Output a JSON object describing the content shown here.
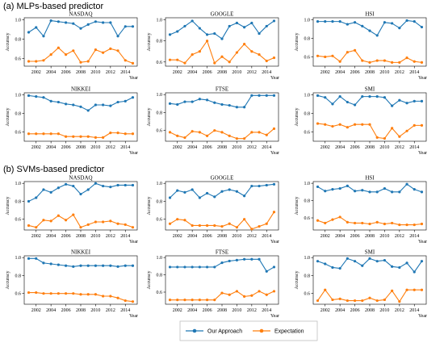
{
  "sections": [
    {
      "key": "mlp",
      "title": "(a) MLPs-based predictor"
    },
    {
      "key": "svm",
      "title": "(b) SVMs-based predictor"
    }
  ],
  "legend": {
    "items": [
      {
        "label": "Our Approach",
        "color": "#1f77b4"
      },
      {
        "label": "Expectation",
        "color": "#ff7f0e"
      }
    ]
  },
  "colors": {
    "our_approach": "#1f77b4",
    "expectation": "#ff7f0e"
  },
  "chart_data": [
    {
      "type": "line",
      "section": "mlp",
      "title": "NASDAQ",
      "xlabel": "Year",
      "ylabel": "Accuracy",
      "x": [
        2001,
        2002,
        2003,
        2004,
        2005,
        2006,
        2007,
        2008,
        2009,
        2010,
        2011,
        2012,
        2013,
        2014,
        2015
      ],
      "xticks": [
        2002,
        2004,
        2006,
        2008,
        2010,
        2012,
        2014
      ],
      "yticks": [
        0.6,
        0.8,
        1.0
      ],
      "ylim": [
        0.52,
        1.02
      ],
      "series": [
        {
          "name": "Our Approach",
          "values": [
            0.87,
            0.92,
            0.83,
            0.99,
            0.98,
            0.97,
            0.96,
            0.91,
            0.95,
            0.98,
            0.97,
            0.97,
            0.83,
            0.93,
            0.93
          ]
        },
        {
          "name": "Expectation",
          "values": [
            0.57,
            0.57,
            0.58,
            0.64,
            0.71,
            0.64,
            0.68,
            0.56,
            0.57,
            0.69,
            0.66,
            0.7,
            0.68,
            0.58,
            0.55
          ]
        }
      ]
    },
    {
      "type": "line",
      "section": "mlp",
      "title": "GOOGLE",
      "xlabel": "Year",
      "ylabel": "Accuracy",
      "x": [
        2001,
        2002,
        2003,
        2004,
        2005,
        2006,
        2007,
        2008,
        2009,
        2010,
        2011,
        2012,
        2013,
        2014,
        2015
      ],
      "xticks": [
        2002,
        2004,
        2006,
        2008,
        2010,
        2012,
        2014
      ],
      "yticks": [
        0.6,
        0.8,
        1.0
      ],
      "ylim": [
        0.56,
        1.02
      ],
      "series": [
        {
          "name": "Our Approach",
          "values": [
            0.86,
            0.89,
            0.94,
            0.99,
            0.92,
            0.86,
            0.87,
            0.82,
            0.94,
            0.97,
            0.93,
            0.97,
            0.87,
            0.94,
            0.99
          ]
        },
        {
          "name": "Expectation",
          "values": [
            0.62,
            0.62,
            0.59,
            0.67,
            0.7,
            0.8,
            0.59,
            0.65,
            0.6,
            0.69,
            0.77,
            0.7,
            0.67,
            0.61,
            0.64
          ]
        }
      ]
    },
    {
      "type": "line",
      "section": "mlp",
      "title": "HSI",
      "xlabel": "Year",
      "ylabel": "Accuracy",
      "x": [
        2001,
        2002,
        2003,
        2004,
        2005,
        2006,
        2007,
        2008,
        2009,
        2010,
        2011,
        2012,
        2013,
        2014,
        2015
      ],
      "xticks": [
        2002,
        2004,
        2006,
        2008,
        2010,
        2012,
        2014
      ],
      "yticks": [
        0.6,
        0.8,
        1.0
      ],
      "ylim": [
        0.5,
        1.02
      ],
      "series": [
        {
          "name": "Our Approach",
          "values": [
            0.98,
            0.98,
            0.98,
            0.98,
            0.95,
            0.97,
            0.93,
            0.88,
            0.83,
            0.97,
            0.96,
            0.91,
            0.99,
            0.98,
            0.92
          ]
        },
        {
          "name": "Expectation",
          "values": [
            0.61,
            0.6,
            0.61,
            0.55,
            0.65,
            0.67,
            0.56,
            0.54,
            0.56,
            0.56,
            0.54,
            0.54,
            0.59,
            0.55,
            0.54
          ]
        }
      ]
    },
    {
      "type": "line",
      "section": "mlp",
      "title": "NIKKEI",
      "xlabel": "Year",
      "ylabel": "Accuracy",
      "x": [
        2001,
        2002,
        2003,
        2004,
        2005,
        2006,
        2007,
        2008,
        2009,
        2010,
        2011,
        2012,
        2013,
        2014,
        2015
      ],
      "xticks": [
        2002,
        2004,
        2006,
        2008,
        2010,
        2012,
        2014
      ],
      "yticks": [
        0.6,
        0.8,
        1.0
      ],
      "ylim": [
        0.5,
        1.02
      ],
      "series": [
        {
          "name": "Our Approach",
          "values": [
            0.99,
            0.98,
            0.97,
            0.93,
            0.92,
            0.9,
            0.89,
            0.87,
            0.83,
            0.89,
            0.89,
            0.88,
            0.92,
            0.93,
            0.97
          ]
        },
        {
          "name": "Expectation",
          "values": [
            0.58,
            0.58,
            0.58,
            0.58,
            0.58,
            0.55,
            0.55,
            0.55,
            0.55,
            0.54,
            0.54,
            0.59,
            0.59,
            0.58,
            0.58
          ]
        }
      ]
    },
    {
      "type": "line",
      "section": "mlp",
      "title": "FTSE",
      "xlabel": "Year",
      "ylabel": "Accuracy",
      "x": [
        2001,
        2002,
        2003,
        2004,
        2005,
        2006,
        2007,
        2008,
        2009,
        2010,
        2011,
        2012,
        2013,
        2014,
        2015
      ],
      "xticks": [
        2002,
        2004,
        2006,
        2008,
        2010,
        2012,
        2014
      ],
      "yticks": [
        0.6,
        0.8,
        1.0
      ],
      "ylim": [
        0.48,
        1.02
      ],
      "series": [
        {
          "name": "Our Approach",
          "values": [
            0.9,
            0.89,
            0.92,
            0.92,
            0.95,
            0.94,
            0.91,
            0.89,
            0.88,
            0.86,
            0.86,
            0.99,
            0.99,
            0.99,
            0.99
          ]
        },
        {
          "name": "Expectation",
          "values": [
            0.58,
            0.54,
            0.52,
            0.59,
            0.58,
            0.54,
            0.6,
            0.58,
            0.54,
            0.51,
            0.51,
            0.58,
            0.58,
            0.55,
            0.62
          ]
        }
      ]
    },
    {
      "type": "line",
      "section": "mlp",
      "title": "SMI",
      "xlabel": "Year",
      "ylabel": "Accuracy",
      "x": [
        2001,
        2002,
        2003,
        2004,
        2005,
        2006,
        2007,
        2008,
        2009,
        2010,
        2011,
        2012,
        2013,
        2014,
        2015
      ],
      "xticks": [
        2002,
        2004,
        2006,
        2008,
        2010,
        2012,
        2014
      ],
      "yticks": [
        0.6,
        0.8,
        1.0
      ],
      "ylim": [
        0.5,
        1.02
      ],
      "series": [
        {
          "name": "Our Approach",
          "values": [
            0.99,
            0.97,
            0.9,
            0.98,
            0.92,
            0.89,
            0.98,
            0.98,
            0.98,
            0.97,
            0.88,
            0.94,
            0.91,
            0.93,
            0.93
          ]
        },
        {
          "name": "Expectation",
          "values": [
            0.69,
            0.68,
            0.66,
            0.68,
            0.65,
            0.68,
            0.68,
            0.68,
            0.54,
            0.53,
            0.64,
            0.55,
            0.61,
            0.67,
            0.67
          ]
        }
      ]
    },
    {
      "type": "line",
      "section": "svm",
      "title": "NASDAQ",
      "xlabel": "Year",
      "ylabel": "Accuracy",
      "x": [
        2001,
        2002,
        2003,
        2004,
        2005,
        2006,
        2007,
        2008,
        2009,
        2010,
        2011,
        2012,
        2013,
        2014,
        2015
      ],
      "xticks": [
        2002,
        2004,
        2006,
        2008,
        2010,
        2012,
        2014
      ],
      "yticks": [
        0.6,
        0.8,
        1.0
      ],
      "ylim": [
        0.48,
        1.02
      ],
      "series": [
        {
          "name": "Our Approach",
          "values": [
            0.8,
            0.84,
            0.93,
            0.9,
            0.95,
            0.99,
            0.97,
            0.88,
            0.93,
            1.0,
            0.97,
            0.96,
            0.98,
            0.98,
            0.98
          ]
        },
        {
          "name": "Expectation",
          "values": [
            0.53,
            0.51,
            0.59,
            0.58,
            0.64,
            0.59,
            0.65,
            0.51,
            0.54,
            0.57,
            0.57,
            0.58,
            0.55,
            0.54,
            0.51
          ]
        }
      ]
    },
    {
      "type": "line",
      "section": "svm",
      "title": "GOOGLE",
      "xlabel": "Year",
      "ylabel": "Accuracy",
      "x": [
        2001,
        2002,
        2003,
        2004,
        2005,
        2006,
        2007,
        2008,
        2009,
        2010,
        2011,
        2012,
        2013,
        2014,
        2015
      ],
      "xticks": [
        2002,
        2004,
        2006,
        2008,
        2010,
        2012,
        2014
      ],
      "yticks": [
        0.6,
        0.8,
        1.0
      ],
      "ylim": [
        0.48,
        1.02
      ],
      "series": [
        {
          "name": "Our Approach",
          "values": [
            0.84,
            0.92,
            0.9,
            0.93,
            0.84,
            0.89,
            0.85,
            0.91,
            0.93,
            0.91,
            0.86,
            0.97,
            0.97,
            0.98,
            0.99
          ]
        },
        {
          "name": "Expectation",
          "values": [
            0.55,
            0.6,
            0.59,
            0.53,
            0.53,
            0.53,
            0.53,
            0.52,
            0.55,
            0.51,
            0.6,
            0.49,
            0.52,
            0.55,
            0.68
          ]
        }
      ]
    },
    {
      "type": "line",
      "section": "svm",
      "title": "HSI",
      "xlabel": "Year",
      "ylabel": "Accuracy",
      "x": [
        2001,
        2002,
        2003,
        2004,
        2005,
        2006,
        2007,
        2008,
        2009,
        2010,
        2011,
        2012,
        2013,
        2014,
        2015
      ],
      "xticks": [
        2002,
        2004,
        2006,
        2008,
        2010,
        2012,
        2014
      ],
      "yticks": [
        0.6,
        0.8,
        1.0
      ],
      "ylim": [
        0.46,
        1.02
      ],
      "series": [
        {
          "name": "Our Approach",
          "values": [
            0.96,
            0.91,
            0.93,
            0.94,
            0.97,
            0.91,
            0.92,
            0.9,
            0.9,
            0.94,
            0.9,
            0.9,
            0.99,
            0.93,
            0.9
          ]
        },
        {
          "name": "Expectation",
          "values": [
            0.57,
            0.54,
            0.58,
            0.61,
            0.55,
            0.54,
            0.54,
            0.53,
            0.55,
            0.53,
            0.54,
            0.52,
            0.52,
            0.52,
            0.53
          ]
        }
      ]
    },
    {
      "type": "line",
      "section": "svm",
      "title": "NIKKEI",
      "xlabel": "Year",
      "ylabel": "Accuracy",
      "x": [
        2001,
        2002,
        2003,
        2004,
        2005,
        2006,
        2007,
        2008,
        2009,
        2010,
        2011,
        2012,
        2013,
        2014,
        2015
      ],
      "xticks": [
        2002,
        2004,
        2006,
        2008,
        2010,
        2012,
        2014
      ],
      "yticks": [
        0.6,
        0.8,
        1.0
      ],
      "ylim": [
        0.48,
        1.02
      ],
      "series": [
        {
          "name": "Our Approach",
          "values": [
            0.99,
            0.99,
            0.94,
            0.93,
            0.92,
            0.91,
            0.9,
            0.91,
            0.91,
            0.91,
            0.91,
            0.91,
            0.9,
            0.91,
            0.91
          ]
        },
        {
          "name": "Expectation",
          "values": [
            0.61,
            0.61,
            0.6,
            0.6,
            0.6,
            0.6,
            0.6,
            0.59,
            0.59,
            0.59,
            0.57,
            0.57,
            0.55,
            0.52,
            0.51
          ]
        }
      ]
    },
    {
      "type": "line",
      "section": "svm",
      "title": "FTSE",
      "xlabel": "Year",
      "ylabel": "Accuracy",
      "x": [
        2001,
        2002,
        2003,
        2004,
        2005,
        2006,
        2007,
        2008,
        2009,
        2010,
        2011,
        2012,
        2013,
        2014,
        2015
      ],
      "xticks": [
        2002,
        2004,
        2006,
        2008,
        2010,
        2012,
        2014
      ],
      "yticks": [
        0.6,
        0.8,
        1.0
      ],
      "ylim": [
        0.46,
        1.02
      ],
      "series": [
        {
          "name": "Our Approach",
          "values": [
            0.89,
            0.89,
            0.89,
            0.89,
            0.89,
            0.89,
            0.89,
            0.94,
            0.96,
            0.97,
            0.98,
            0.98,
            0.98,
            0.84,
            0.89
          ]
        },
        {
          "name": "Expectation",
          "values": [
            0.51,
            0.51,
            0.51,
            0.51,
            0.51,
            0.51,
            0.51,
            0.59,
            0.57,
            0.61,
            0.55,
            0.56,
            0.61,
            0.57,
            0.61
          ]
        }
      ]
    },
    {
      "type": "line",
      "section": "svm",
      "title": "SMI",
      "xlabel": "Year",
      "ylabel": "Accuracy",
      "x": [
        2001,
        2002,
        2003,
        2004,
        2005,
        2006,
        2007,
        2008,
        2009,
        2010,
        2011,
        2012,
        2013,
        2014,
        2015
      ],
      "xticks": [
        2002,
        2004,
        2006,
        2008,
        2010,
        2012,
        2014
      ],
      "yticks": [
        0.6,
        0.8,
        1.0
      ],
      "ylim": [
        0.48,
        1.02
      ],
      "series": [
        {
          "name": "Our Approach",
          "values": [
            0.96,
            0.93,
            0.89,
            0.88,
            0.99,
            0.96,
            0.91,
            0.99,
            0.96,
            0.97,
            0.9,
            0.89,
            0.94,
            0.84,
            0.96
          ]
        },
        {
          "name": "Expectation",
          "values": [
            0.52,
            0.64,
            0.53,
            0.54,
            0.52,
            0.52,
            0.52,
            0.55,
            0.52,
            0.53,
            0.63,
            0.51,
            0.64,
            0.64,
            0.64
          ]
        }
      ]
    }
  ]
}
